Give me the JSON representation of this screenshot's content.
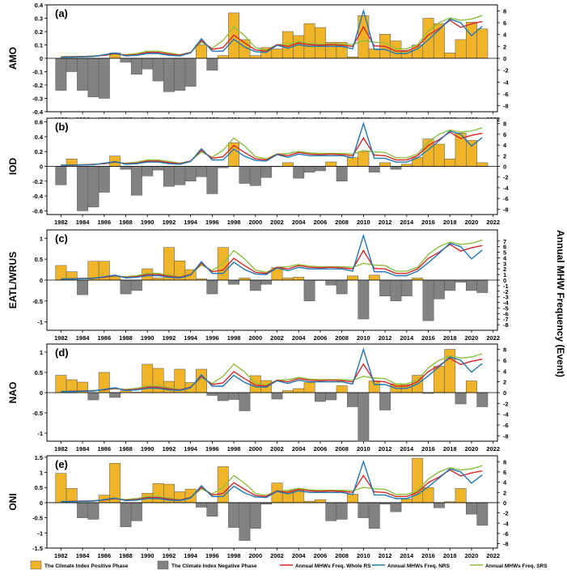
{
  "figure": {
    "right_axis_label": "Annual MHW Frequency (Event)",
    "years": [
      1982,
      1983,
      1984,
      1985,
      1986,
      1987,
      1988,
      1989,
      1990,
      1991,
      1992,
      1993,
      1994,
      1995,
      1996,
      1997,
      1998,
      1999,
      2000,
      2001,
      2002,
      2003,
      2004,
      2005,
      2006,
      2007,
      2008,
      2009,
      2010,
      2011,
      2012,
      2013,
      2014,
      2015,
      2016,
      2017,
      2018,
      2019,
      2020,
      2021
    ],
    "mhw_whole_rs": [
      0.2,
      0.25,
      0.3,
      0.35,
      0.5,
      0.8,
      0.5,
      0.6,
      1.0,
      1.0,
      0.7,
      0.5,
      1.0,
      3.0,
      1.5,
      1.8,
      3.9,
      2.6,
      1.4,
      1.2,
      2.3,
      2.0,
      2.6,
      2.3,
      2.2,
      2.3,
      2.2,
      2.0,
      5.3,
      2.1,
      2.0,
      1.2,
      1.2,
      2.0,
      3.9,
      5.0,
      6.4,
      5.2,
      5.8,
      6.2
    ],
    "mhw_nrs": [
      0.2,
      0.2,
      0.25,
      0.3,
      0.6,
      0.9,
      0.4,
      0.5,
      0.8,
      0.8,
      0.5,
      0.4,
      0.9,
      3.3,
      1.2,
      1.2,
      3.2,
      1.9,
      1.1,
      1.0,
      2.2,
      1.7,
      2.3,
      2.0,
      2.0,
      2.0,
      2.0,
      1.6,
      8.0,
      1.5,
      1.5,
      0.8,
      0.8,
      1.6,
      3.1,
      4.8,
      6.6,
      6.0,
      3.8,
      5.4
    ],
    "mhw_srs": [
      0.3,
      0.3,
      0.3,
      0.4,
      0.5,
      0.7,
      0.6,
      0.8,
      1.2,
      1.2,
      0.9,
      0.6,
      1.0,
      2.7,
      1.7,
      3.0,
      5.3,
      3.8,
      1.8,
      1.4,
      2.3,
      2.4,
      2.8,
      2.5,
      2.4,
      2.4,
      2.4,
      2.3,
      3.0,
      2.7,
      2.6,
      1.6,
      1.6,
      2.3,
      4.6,
      6.0,
      6.8,
      6.4,
      6.6,
      7.2
    ]
  },
  "chart_data": [
    {
      "type": "bar+line",
      "panel_label": "(a)",
      "ylabel": "AMO",
      "ylim": [
        -0.4,
        0.4
      ],
      "yticks": [
        0.4,
        0.3,
        0.2,
        0.1,
        0,
        -0.1,
        -0.2,
        -0.3,
        -0.4
      ],
      "ytick_labels": [
        "0.4",
        "0.3",
        "0.2",
        "0.1",
        "0",
        "-0.1",
        "-0.2",
        "-0.3",
        "-0.4"
      ],
      "y2lim": [
        -9,
        9
      ],
      "y2ticks": [
        8,
        6,
        4,
        2,
        0,
        -2,
        -4,
        -6,
        -8
      ],
      "y2tick_labels": [
        "8",
        "6",
        "4",
        "2",
        "0",
        "-2",
        "-4",
        "-6",
        "-8"
      ],
      "xticks": [
        1982,
        1984,
        1986,
        1988,
        1990,
        1992,
        1994,
        1996,
        1998,
        2000,
        2002,
        2004,
        2006,
        2008,
        2010,
        2012,
        2014,
        2016,
        2018,
        2020,
        2022
      ],
      "xtick_labels": [
        "1982",
        "1984",
        "1986",
        "1988",
        "1990",
        "1992",
        "1994",
        "1996",
        "1998",
        "2000",
        "2002",
        "2004",
        "2006",
        "2008",
        "2010",
        "2012",
        "2014",
        "2016",
        "2018",
        "2020",
        "2022"
      ],
      "index_values": [
        -0.24,
        -0.1,
        -0.24,
        -0.29,
        -0.3,
        0.04,
        -0.03,
        -0.12,
        -0.08,
        -0.17,
        -0.25,
        -0.24,
        -0.21,
        0.1,
        -0.09,
        0.02,
        0.34,
        0.14,
        0.02,
        0.08,
        0.07,
        0.2,
        0.17,
        0.26,
        0.23,
        0.12,
        0.12,
        0.01,
        0.32,
        0.07,
        0.18,
        0.13,
        0.06,
        0.1,
        0.3,
        0.26,
        0.04,
        0.14,
        0.27,
        0.22
      ]
    },
    {
      "type": "bar+line",
      "panel_label": "(b)",
      "ylabel": "IOD",
      "ylim": [
        -0.65,
        0.65
      ],
      "yticks": [
        0.6,
        0.4,
        0.2,
        0,
        -0.2,
        -0.4,
        -0.6
      ],
      "ytick_labels": [
        "0.6",
        "0.4",
        "0.2",
        "0",
        "-0.2",
        "-0.4",
        "-0.6"
      ],
      "y2lim": [
        -9,
        9
      ],
      "y2ticks": [
        8,
        6,
        4,
        2,
        0,
        -2,
        -4,
        -6,
        -8
      ],
      "y2tick_labels": [
        "8",
        "6",
        "4",
        "2",
        "0",
        "-2",
        "-4",
        "-6",
        "-8"
      ],
      "xticks": [
        1982,
        1984,
        1986,
        1988,
        1990,
        1992,
        1994,
        1996,
        1998,
        2000,
        2002,
        2004,
        2006,
        2008,
        2010,
        2012,
        2014,
        2016,
        2018,
        2020,
        2022
      ],
      "xtick_labels": [
        "1982",
        "1984",
        "1986",
        "1988",
        "1990",
        "1992",
        "1994",
        "1996",
        "1998",
        "2000",
        "2002",
        "2004",
        "2006",
        "2008",
        "2010",
        "2012",
        "2014",
        "2016",
        "2018",
        "2020",
        "2022"
      ],
      "index_values": [
        -0.25,
        0.1,
        -0.6,
        -0.55,
        -0.35,
        0.14,
        -0.04,
        -0.39,
        -0.13,
        -0.05,
        -0.27,
        -0.25,
        -0.2,
        -0.14,
        -0.37,
        -0.02,
        0.32,
        -0.23,
        -0.26,
        -0.15,
        0.0,
        0.05,
        -0.16,
        -0.08,
        -0.06,
        0.06,
        -0.2,
        0.12,
        0.2,
        -0.08,
        0.05,
        -0.04,
        0.03,
        0.12,
        0.37,
        0.3,
        0.1,
        0.45,
        0.35,
        0.05
      ]
    },
    {
      "type": "bar+line",
      "panel_label": "(c)",
      "ylabel": "EATL/WRUS",
      "ylim": [
        -1.2,
        1.2
      ],
      "yticks": [
        1,
        0.5,
        0,
        -0.5,
        -1
      ],
      "ytick_labels": [
        "1",
        "0.5",
        "0",
        "-0.5",
        "-1"
      ],
      "y2lim": [
        -9,
        9
      ],
      "y2ticks": [
        7,
        6,
        5,
        4,
        3,
        2,
        1,
        0,
        -1,
        -2,
        -3,
        -4,
        -5,
        -6,
        -7,
        -8
      ],
      "y2tick_labels": [
        "7",
        "6",
        "5",
        "4",
        "3",
        "2",
        "1",
        "0",
        "-1",
        "-2",
        "-3",
        "-4",
        "-5",
        "-6",
        "-7",
        "-8"
      ],
      "xticks": [
        1982,
        1984,
        1986,
        1988,
        1990,
        1992,
        1994,
        1996,
        1998,
        2000,
        2002,
        2004,
        2006,
        2008,
        2010,
        2012,
        2014,
        2016,
        2018,
        2020,
        2022
      ],
      "xtick_labels": [
        "1982",
        "1984",
        "1986",
        "1988",
        "1990",
        "1992",
        "1994",
        "1996",
        "1998",
        "2000",
        "2002",
        "2004",
        "2006",
        "2008",
        "2010",
        "2012",
        "2014",
        "2016",
        "2018",
        "2020",
        "2022"
      ],
      "index_values": [
        0.35,
        0.2,
        -0.35,
        0.45,
        0.45,
        0.08,
        -0.33,
        -0.25,
        0.27,
        0.05,
        0.78,
        0.46,
        0.25,
        0.03,
        -0.33,
        0.78,
        -0.1,
        0.05,
        -0.25,
        -0.1,
        0.3,
        0.05,
        0.07,
        -0.5,
        -0.01,
        -0.12,
        -0.33,
        0.1,
        -0.93,
        0.12,
        -0.38,
        -0.5,
        -0.38,
        0.05,
        -0.97,
        -0.45,
        -0.25,
        -0.05,
        -0.25,
        -0.3
      ]
    },
    {
      "type": "bar+line",
      "panel_label": "(d)",
      "ylabel": "NAO",
      "ylim": [
        -1.2,
        1.2
      ],
      "yticks": [
        1,
        0.5,
        0,
        -0.5,
        -1
      ],
      "ytick_labels": [
        "1",
        "0.5",
        "0",
        "-0.5",
        "-1"
      ],
      "y2lim": [
        -9,
        9
      ],
      "y2ticks": [
        8,
        6,
        4,
        2,
        0,
        -2,
        -4,
        -6,
        -8
      ],
      "y2tick_labels": [
        "8",
        "6",
        "4",
        "2",
        "0",
        "-2",
        "-4",
        "-6",
        "-8"
      ],
      "xticks": [
        1982,
        1984,
        1986,
        1988,
        1990,
        1992,
        1994,
        1996,
        1998,
        2000,
        2002,
        2004,
        2006,
        2008,
        2010,
        2012,
        2014,
        2016,
        2018,
        2020,
        2022
      ],
      "xtick_labels": [
        "1982",
        "1984",
        "1986",
        "1988",
        "1990",
        "1992",
        "1994",
        "1996",
        "1998",
        "2000",
        "2002",
        "2004",
        "2006",
        "2008",
        "2010",
        "2012",
        "2014",
        "2016",
        "2018",
        "2020",
        "2022"
      ],
      "index_values": [
        0.43,
        0.32,
        0.26,
        -0.18,
        0.5,
        -0.12,
        0.05,
        0.01,
        0.7,
        0.6,
        0.28,
        0.58,
        0.25,
        0.58,
        -0.07,
        -0.2,
        -0.17,
        -0.45,
        0.42,
        0.3,
        -0.16,
        0.05,
        0.1,
        0.25,
        -0.22,
        -0.18,
        0.17,
        -0.35,
        -1.2,
        0.29,
        -0.43,
        0.22,
        0.2,
        0.43,
        -0.02,
        0.65,
        1.07,
        -0.28,
        0.29,
        -0.35
      ]
    },
    {
      "type": "bar+line",
      "panel_label": "(e)",
      "ylabel": "ONI",
      "ylim": [
        -1.5,
        1.55
      ],
      "yticks": [
        1.5,
        1,
        0.5,
        0,
        -0.5,
        -1,
        -1.5
      ],
      "ytick_labels": [
        "1.5",
        "1",
        "0.5",
        "0",
        "-0.5",
        "-1",
        "-1.5"
      ],
      "y2lim": [
        -9,
        9
      ],
      "y2ticks": [
        8,
        6,
        4,
        2,
        0,
        -2,
        -4,
        -6,
        -8
      ],
      "y2tick_labels": [
        "8",
        "6",
        "4",
        "2",
        "0",
        "-2",
        "-4",
        "-6",
        "-8"
      ],
      "xticks": [
        1982,
        1984,
        1986,
        1988,
        1990,
        1992,
        1994,
        1996,
        1998,
        2000,
        2002,
        2004,
        2006,
        2008,
        2010,
        2012,
        2014,
        2016,
        2018,
        2020,
        2022
      ],
      "xtick_labels": [
        "1982",
        "1984",
        "1986",
        "1988",
        "1990",
        "1992",
        "1994",
        "1996",
        "1998",
        "2000",
        "2002",
        "2004",
        "2006",
        "2008",
        "2010",
        "2012",
        "2014",
        "2016",
        "2018",
        "2020",
        "2022"
      ],
      "index_values": [
        0.97,
        0.47,
        -0.5,
        -0.55,
        0.25,
        1.3,
        -0.8,
        -0.6,
        0.31,
        0.63,
        0.61,
        0.36,
        0.45,
        -0.15,
        -0.45,
        1.19,
        -0.82,
        -1.25,
        -0.85,
        -0.05,
        0.65,
        0.4,
        0.43,
        0.05,
        0.1,
        -0.6,
        -0.55,
        0.28,
        -0.5,
        -0.85,
        -0.05,
        -0.3,
        0.12,
        1.47,
        0.5,
        -0.17,
        0.03,
        0.47,
        -0.38,
        -0.75
      ]
    }
  ],
  "legend": {
    "colors": {
      "positive": "#f0b428",
      "negative": "#828282",
      "whole": "#d62728",
      "nrs": "#1f77b4",
      "srs": "#8fbf3f"
    },
    "items": [
      {
        "label": "The Climate Index Positive Phase",
        "key": "positive",
        "kind": "bar"
      },
      {
        "label": "The Climate Index Negative Phase",
        "key": "negative",
        "kind": "bar"
      },
      {
        "label": "Annual MHWs Freq. Whole RS",
        "key": "whole",
        "kind": "line"
      },
      {
        "label": "Annual MHWs Freq. NRS",
        "key": "nrs",
        "kind": "line"
      },
      {
        "label": "Annual MHWs Freq. SRS",
        "key": "srs",
        "kind": "line"
      }
    ]
  }
}
